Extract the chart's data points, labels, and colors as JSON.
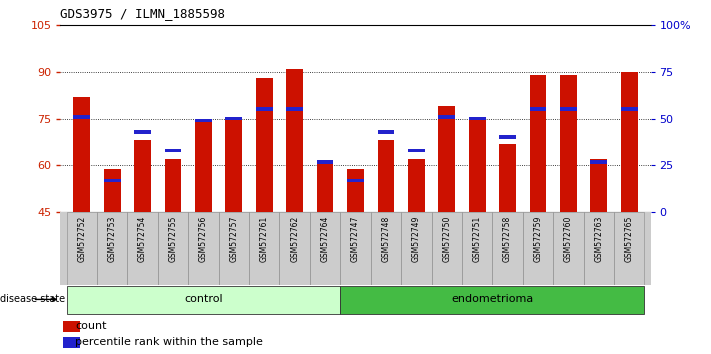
{
  "title": "GDS3975 / ILMN_1885598",
  "samples": [
    "GSM572752",
    "GSM572753",
    "GSM572754",
    "GSM572755",
    "GSM572756",
    "GSM572757",
    "GSM572761",
    "GSM572762",
    "GSM572764",
    "GSM572747",
    "GSM572748",
    "GSM572749",
    "GSM572750",
    "GSM572751",
    "GSM572758",
    "GSM572759",
    "GSM572760",
    "GSM572763",
    "GSM572765"
  ],
  "count_values": [
    82,
    59,
    68,
    62,
    74,
    75,
    88,
    91,
    61,
    59,
    68,
    62,
    79,
    75,
    67,
    89,
    89,
    62,
    90
  ],
  "percentile_values": [
    51,
    17,
    43,
    33,
    49,
    50,
    55,
    55,
    27,
    17,
    43,
    33,
    51,
    50,
    40,
    55,
    55,
    27,
    55
  ],
  "n_control": 9,
  "n_endometrioma": 10,
  "ylim_left": [
    45,
    105
  ],
  "ylim_right": [
    0,
    100
  ],
  "yticks_left": [
    45,
    60,
    75,
    90,
    105
  ],
  "yticks_right": [
    0,
    25,
    50,
    75,
    100
  ],
  "bar_color": "#CC1100",
  "percentile_color": "#2222CC",
  "control_bg": "#CCFFCC",
  "endometrioma_bg": "#44BB44",
  "label_bg": "#CCCCCC",
  "left_axis_color": "#CC2200",
  "right_axis_color": "#0000CC",
  "bar_width": 0.55
}
